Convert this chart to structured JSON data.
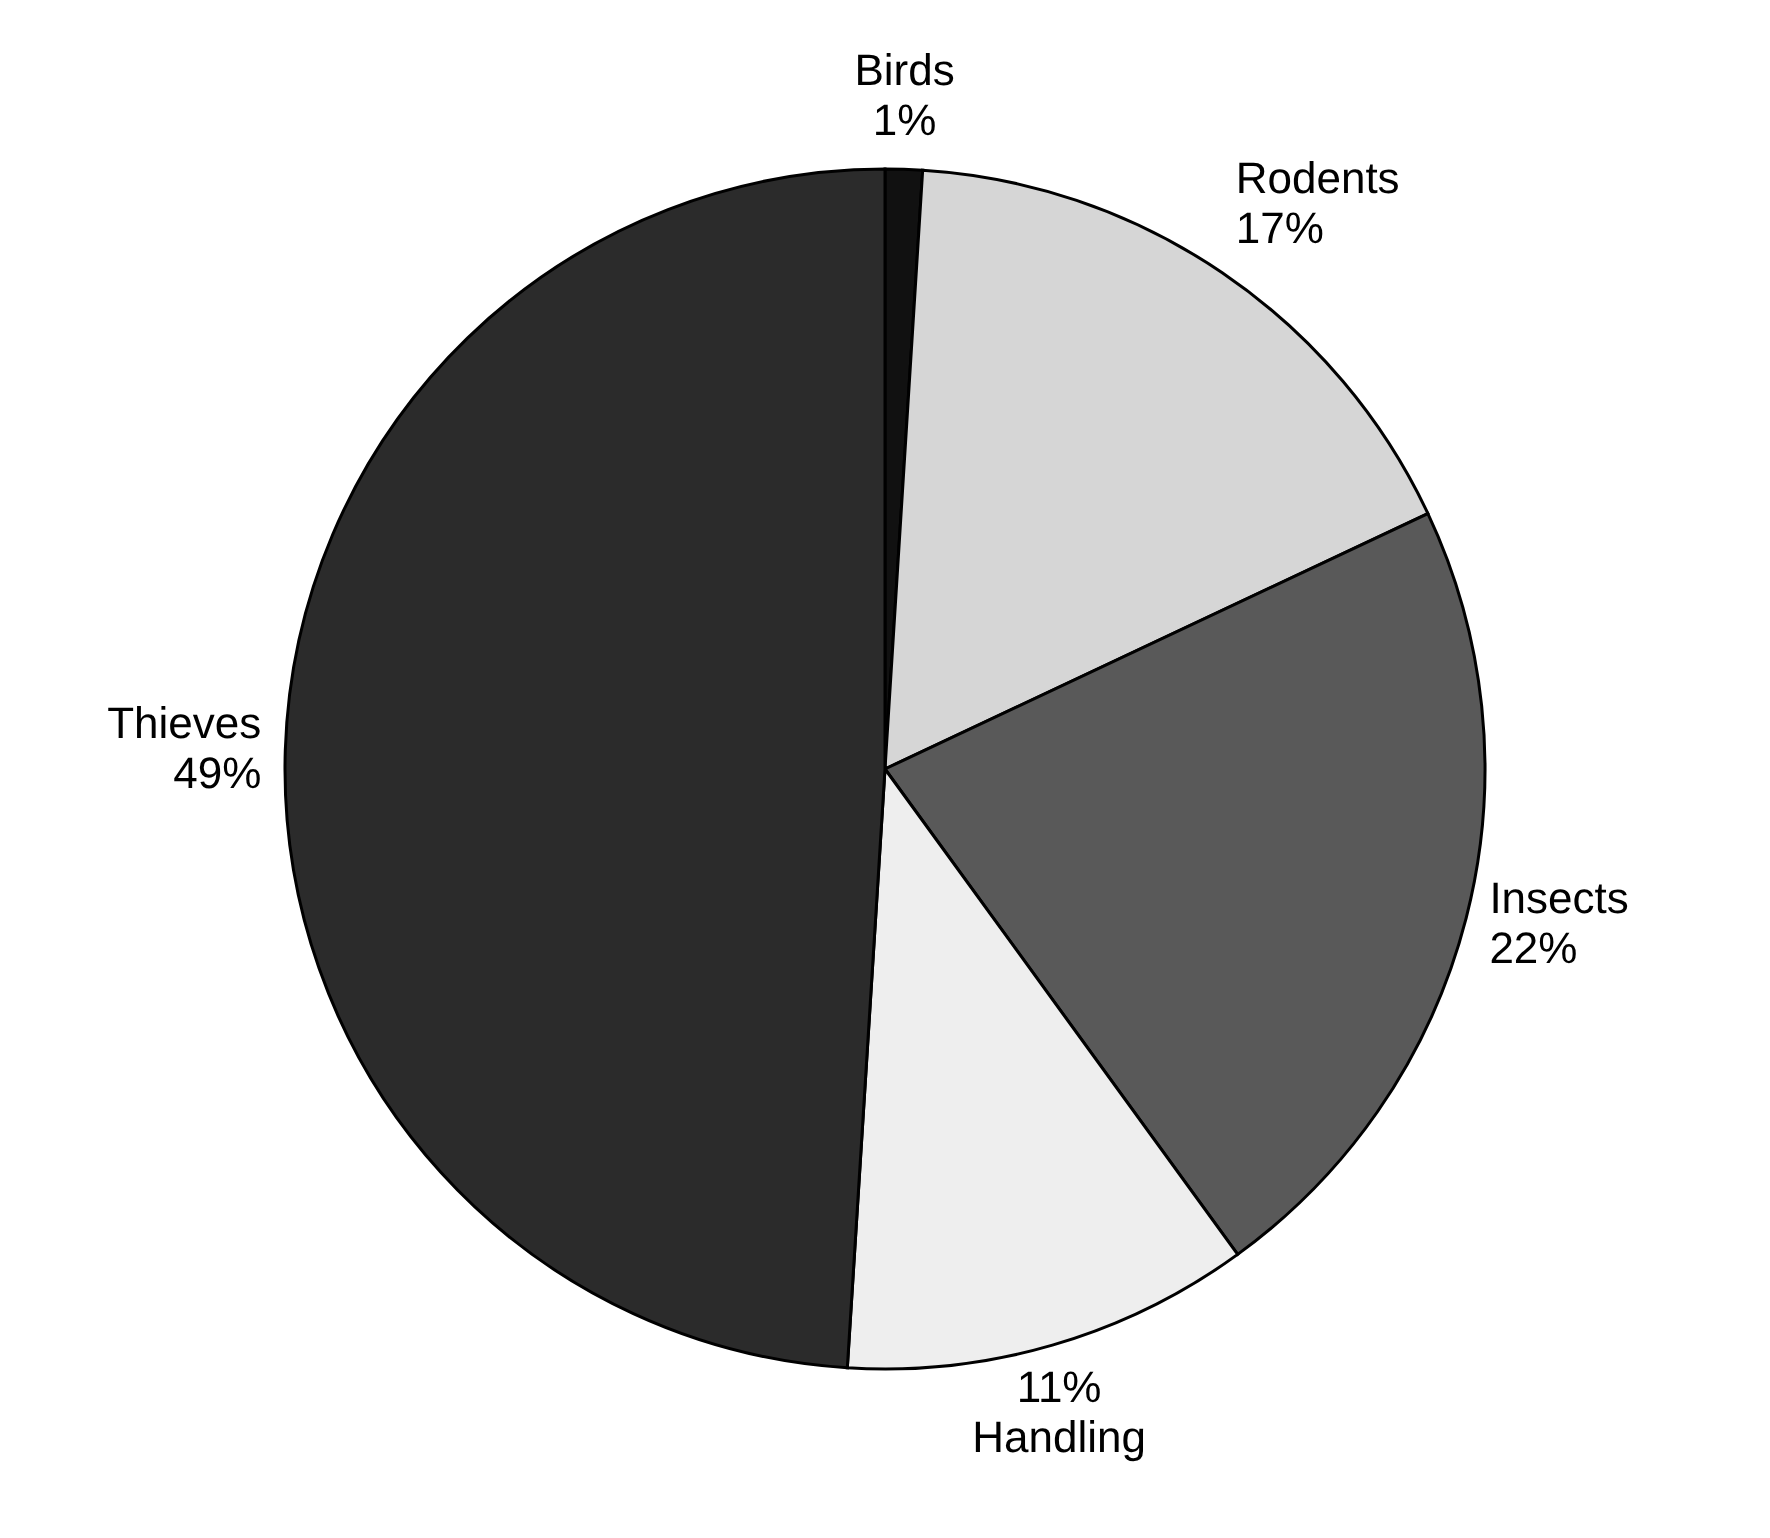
{
  "chart_data": {
    "type": "pie",
    "categories": [
      "Birds",
      "Rodents",
      "Insects",
      "Handling",
      "Thieves"
    ],
    "values": [
      1,
      17,
      22,
      11,
      49
    ],
    "value_labels": [
      "1%",
      "17%",
      "22%",
      "11%",
      "49%"
    ],
    "colors": [
      "#111111",
      "#d6d6d6",
      "#595959",
      "#eeeeee",
      "#2b2b2b"
    ]
  }
}
